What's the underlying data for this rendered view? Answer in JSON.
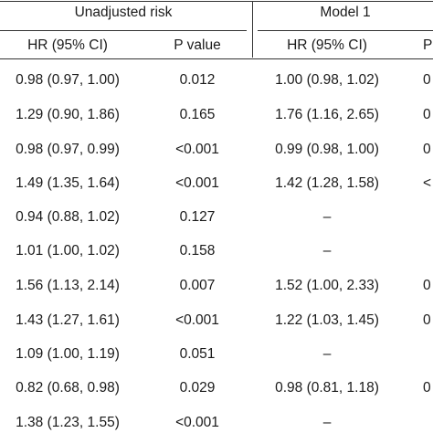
{
  "table": {
    "groups": [
      "Unadjusted risk",
      "Model 1"
    ],
    "columns": [
      "HR (95% CI)",
      "P value",
      "HR (95% CI)",
      "P value"
    ],
    "rows": [
      [
        "0.98 (0.97, 1.00)",
        "0.012",
        "1.00 (0.98, 1.02)",
        "0"
      ],
      [
        "1.29 (0.90, 1.86)",
        "0.165",
        "1.76 (1.16, 2.65)",
        "0"
      ],
      [
        "0.98 (0.97, 0.99)",
        "<0.001",
        "0.99 (0.98, 1.00)",
        "0"
      ],
      [
        "1.49 (1.35, 1.64)",
        "<0.001",
        "1.42 (1.28, 1.58)",
        "<"
      ],
      [
        "0.94 (0.88, 1.02)",
        "0.127",
        "–",
        ""
      ],
      [
        "1.01 (1.00, 1.02)",
        "0.158",
        "–",
        ""
      ],
      [
        "1.56 (1.13, 2.14)",
        "0.007",
        "1.52 (1.00, 2.33)",
        "0"
      ],
      [
        "1.43 (1.27, 1.61)",
        "<0.001",
        "1.22 (1.03, 1.45)",
        "0"
      ],
      [
        "1.09 (1.00, 1.19)",
        "0.051",
        "–",
        ""
      ],
      [
        "0.82 (0.68, 0.98)",
        "0.029",
        "0.98 (0.81, 1.18)",
        "0"
      ],
      [
        "1.38 (1.23, 1.55)",
        "<0.001",
        "–",
        ""
      ]
    ]
  }
}
